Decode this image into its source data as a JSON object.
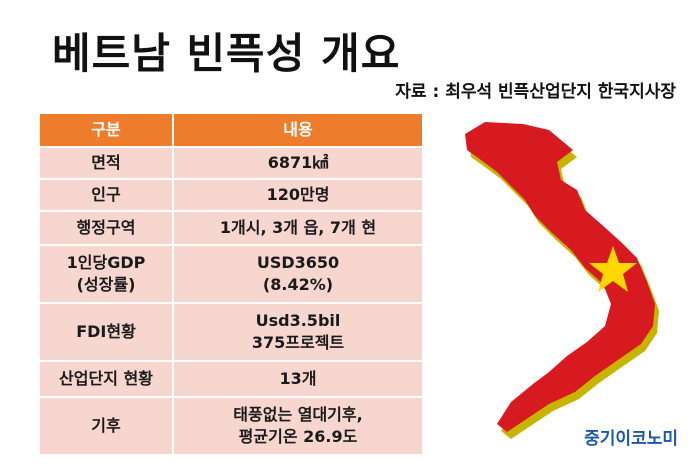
{
  "title": "베트남 빈픅성 개요",
  "source": "자료 : 최우석 빈픅산업단지 한국지사장",
  "table": {
    "headers": [
      "구분",
      "내용"
    ],
    "rows": [
      {
        "label": "면적",
        "value": "6871㎢"
      },
      {
        "label": "인구",
        "value": "120만명"
      },
      {
        "label": "행정구역",
        "value": "1개시, 3개 읍, 7개 현"
      },
      {
        "label": "1인당GDP\n(성장률)",
        "value": "USD3650\n(8.42%)"
      },
      {
        "label": "FDI현황",
        "value": "Usd3.5bil\n375프로젝트"
      },
      {
        "label": "산업단지 현황",
        "value": "13개"
      },
      {
        "label": "기후",
        "value": "태풍없는 열대기후,\n평균기온 26.9도"
      }
    ]
  },
  "map": {
    "fill_color": "#d71920",
    "side_color": "#c8b400",
    "star_color": "#ffd700"
  },
  "brand": "중기이코노미",
  "colors": {
    "header_bg": "#ee7c2d",
    "row_bg": "#f7d6cf",
    "brand": "#1d57a8"
  }
}
